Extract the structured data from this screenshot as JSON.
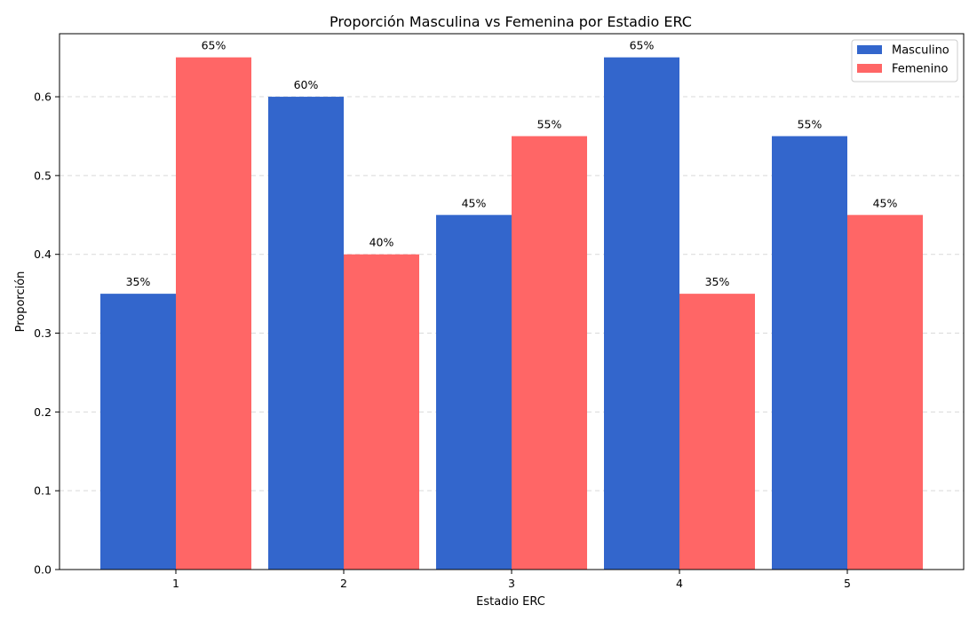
{
  "chart_data": {
    "type": "bar",
    "title": "Proporción Masculina vs Femenina por Estadio ERC",
    "xlabel": "Estadio ERC",
    "ylabel": "Proporción",
    "categories": [
      "1",
      "2",
      "3",
      "4",
      "5"
    ],
    "ylim": [
      0,
      0.68
    ],
    "yticks": [
      "0.0",
      "0.1",
      "0.2",
      "0.3",
      "0.4",
      "0.5",
      "0.6"
    ],
    "grid": "y-dashed",
    "legend_position": "top-right",
    "series": [
      {
        "name": "Masculino",
        "color": "#3366cc",
        "values": [
          0.35,
          0.6,
          0.45,
          0.65,
          0.55
        ],
        "labels": [
          "35%",
          "60%",
          "45%",
          "65%",
          "55%"
        ]
      },
      {
        "name": "Femenino",
        "color": "#ff6666",
        "values": [
          0.65,
          0.4,
          0.55,
          0.35,
          0.45
        ],
        "labels": [
          "65%",
          "40%",
          "55%",
          "35%",
          "45%"
        ]
      }
    ]
  }
}
